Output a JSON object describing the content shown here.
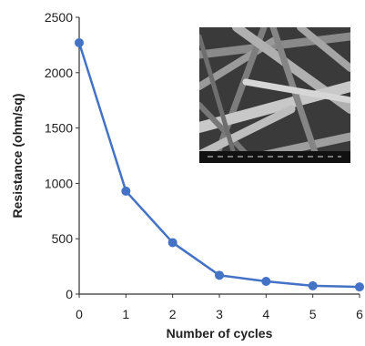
{
  "chart_data": {
    "type": "line",
    "xlabel": "Number of cycles",
    "ylabel": "Resistance (ohm/sq)",
    "xlim": [
      0,
      6
    ],
    "ylim": [
      0,
      2500
    ],
    "xticks": [
      "0",
      "1",
      "2",
      "3",
      "4",
      "5",
      "6"
    ],
    "yticks": [
      "0",
      "500",
      "1000",
      "1500",
      "2000",
      "2500"
    ],
    "grid": false,
    "series": [
      {
        "x": [
          0,
          1,
          2,
          3,
          4,
          5,
          6
        ],
        "values": [
          2270,
          930,
          465,
          170,
          115,
          75,
          65
        ]
      }
    ],
    "inset": {
      "type": "SEM micrograph"
    }
  },
  "colors": {
    "series": "#4472c4",
    "axis": "#333333"
  }
}
